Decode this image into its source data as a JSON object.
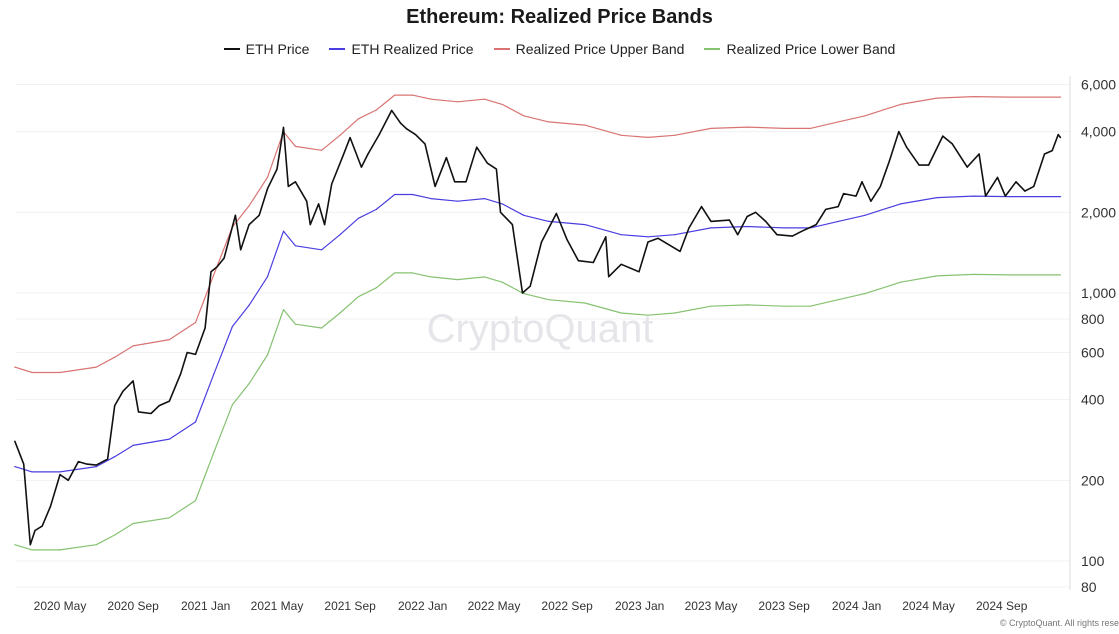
{
  "chart_data": {
    "type": "line",
    "title": "Ethereum: Realized Price Bands",
    "xlabel": "",
    "ylabel": "",
    "y_scale": "log",
    "ylim": [
      80,
      6500
    ],
    "xlim": [
      "2020-02-15",
      "2024-12-10"
    ],
    "grid": true,
    "legend_position": "top",
    "y_ticks": [
      {
        "value": 6000,
        "label": "6,000"
      },
      {
        "value": 4000,
        "label": "4,000"
      },
      {
        "value": 2000,
        "label": "2,000"
      },
      {
        "value": 1000,
        "label": "1,000"
      },
      {
        "value": 800,
        "label": "800"
      },
      {
        "value": 600,
        "label": "600"
      },
      {
        "value": 400,
        "label": "400"
      },
      {
        "value": 200,
        "label": "200"
      },
      {
        "value": 100,
        "label": "100"
      },
      {
        "value": 80,
        "label": "80"
      }
    ],
    "x_ticks": [
      {
        "value": "2020-05-01",
        "label": "2020 May"
      },
      {
        "value": "2020-09-01",
        "label": "2020 Sep"
      },
      {
        "value": "2021-01-01",
        "label": "2021 Jan"
      },
      {
        "value": "2021-05-01",
        "label": "2021 May"
      },
      {
        "value": "2021-09-01",
        "label": "2021 Sep"
      },
      {
        "value": "2022-01-01",
        "label": "2022 Jan"
      },
      {
        "value": "2022-05-01",
        "label": "2022 May"
      },
      {
        "value": "2022-09-01",
        "label": "2022 Sep"
      },
      {
        "value": "2023-01-01",
        "label": "2023 Jan"
      },
      {
        "value": "2023-05-01",
        "label": "2023 May"
      },
      {
        "value": "2023-09-01",
        "label": "2023 Sep"
      },
      {
        "value": "2024-01-01",
        "label": "2024 Jan"
      },
      {
        "value": "2024-05-01",
        "label": "2024 May"
      },
      {
        "value": "2024-09-01",
        "label": "2024 Sep"
      }
    ],
    "series": [
      {
        "name": "ETH Price",
        "color": "#111111",
        "x": [
          "2020-02-15",
          "2020-03-01",
          "2020-03-12",
          "2020-03-20",
          "2020-04-01",
          "2020-04-15",
          "2020-05-01",
          "2020-05-15",
          "2020-06-01",
          "2020-06-15",
          "2020-07-01",
          "2020-07-20",
          "2020-08-01",
          "2020-08-15",
          "2020-09-01",
          "2020-09-10",
          "2020-10-01",
          "2020-10-15",
          "2020-11-01",
          "2020-11-20",
          "2020-12-01",
          "2020-12-15",
          "2020-12-31",
          "2021-01-10",
          "2021-01-20",
          "2021-02-01",
          "2021-02-20",
          "2021-03-01",
          "2021-03-15",
          "2021-04-01",
          "2021-04-15",
          "2021-05-01",
          "2021-05-12",
          "2021-05-20",
          "2021-06-01",
          "2021-06-20",
          "2021-06-26",
          "2021-07-10",
          "2021-07-20",
          "2021-08-01",
          "2021-08-20",
          "2021-09-01",
          "2021-09-20",
          "2021-10-01",
          "2021-10-20",
          "2021-11-10",
          "2021-11-25",
          "2021-12-05",
          "2021-12-20",
          "2022-01-05",
          "2022-01-22",
          "2022-02-10",
          "2022-02-24",
          "2022-03-15",
          "2022-04-02",
          "2022-04-20",
          "2022-05-05",
          "2022-05-12",
          "2022-06-01",
          "2022-06-18",
          "2022-07-01",
          "2022-07-20",
          "2022-08-14",
          "2022-09-01",
          "2022-09-20",
          "2022-10-15",
          "2022-11-05",
          "2022-11-10",
          "2022-12-01",
          "2022-12-31",
          "2023-01-15",
          "2023-02-01",
          "2023-03-10",
          "2023-03-25",
          "2023-04-15",
          "2023-05-01",
          "2023-06-01",
          "2023-06-15",
          "2023-07-01",
          "2023-07-15",
          "2023-08-01",
          "2023-08-20",
          "2023-09-15",
          "2023-10-01",
          "2023-10-25",
          "2023-11-10",
          "2023-12-01",
          "2023-12-10",
          "2023-12-31",
          "2024-01-10",
          "2024-01-25",
          "2024-02-10",
          "2024-02-25",
          "2024-03-12",
          "2024-03-25",
          "2024-04-15",
          "2024-05-01",
          "2024-05-25",
          "2024-06-10",
          "2024-07-05",
          "2024-07-25",
          "2024-08-05",
          "2024-08-25",
          "2024-09-07",
          "2024-09-25",
          "2024-10-10",
          "2024-10-25",
          "2024-11-12",
          "2024-11-25",
          "2024-12-05",
          "2024-12-09"
        ],
        "y": [
          280,
          230,
          115,
          130,
          135,
          160,
          210,
          200,
          235,
          230,
          228,
          240,
          380,
          430,
          470,
          360,
          355,
          380,
          395,
          500,
          600,
          590,
          740,
          1200,
          1250,
          1350,
          1950,
          1450,
          1800,
          1950,
          2450,
          2900,
          4150,
          2500,
          2600,
          2200,
          1800,
          2150,
          1800,
          2550,
          3250,
          3800,
          2950,
          3300,
          3900,
          4800,
          4300,
          4100,
          3900,
          3600,
          2500,
          3200,
          2600,
          2600,
          3500,
          3050,
          2900,
          2000,
          1800,
          1000,
          1060,
          1550,
          1980,
          1580,
          1320,
          1300,
          1620,
          1150,
          1280,
          1200,
          1550,
          1600,
          1430,
          1750,
          2100,
          1850,
          1870,
          1650,
          1930,
          2000,
          1850,
          1650,
          1630,
          1700,
          1800,
          2050,
          2100,
          2350,
          2300,
          2600,
          2200,
          2500,
          3100,
          4000,
          3500,
          3000,
          3000,
          3850,
          3600,
          2950,
          3300,
          2300,
          2700,
          2300,
          2600,
          2400,
          2500,
          3300,
          3400,
          3900,
          3800
        ]
      },
      {
        "name": "ETH Realized Price",
        "color": "#4b3ee0",
        "x": [
          "2020-02-15",
          "2020-03-15",
          "2020-05-01",
          "2020-07-01",
          "2020-08-01",
          "2020-09-01",
          "2020-11-01",
          "2020-12-15",
          "2021-01-15",
          "2021-02-15",
          "2021-03-15",
          "2021-04-15",
          "2021-05-12",
          "2021-06-01",
          "2021-07-15",
          "2021-08-15",
          "2021-09-15",
          "2021-10-15",
          "2021-11-15",
          "2021-12-15",
          "2022-01-15",
          "2022-03-01",
          "2022-04-15",
          "2022-05-15",
          "2022-06-20",
          "2022-08-01",
          "2022-10-01",
          "2022-12-01",
          "2023-01-15",
          "2023-03-01",
          "2023-05-01",
          "2023-07-01",
          "2023-09-01",
          "2023-10-15",
          "2023-12-01",
          "2024-01-15",
          "2024-03-15",
          "2024-05-15",
          "2024-07-15",
          "2024-09-15",
          "2024-12-09"
        ],
        "y": [
          225,
          215,
          215,
          225,
          245,
          270,
          285,
          330,
          500,
          750,
          900,
          1150,
          1700,
          1500,
          1450,
          1650,
          1900,
          2050,
          2330,
          2330,
          2250,
          2200,
          2250,
          2150,
          1950,
          1850,
          1800,
          1650,
          1620,
          1650,
          1750,
          1770,
          1750,
          1750,
          1850,
          1950,
          2150,
          2270,
          2300,
          2290,
          2290
        ]
      },
      {
        "name": "Realized Price Upper Band",
        "color": "#d97473",
        "x": [
          "2020-02-15",
          "2020-03-15",
          "2020-05-01",
          "2020-07-01",
          "2020-08-01",
          "2020-09-01",
          "2020-11-01",
          "2020-12-15",
          "2021-01-15",
          "2021-02-15",
          "2021-03-15",
          "2021-04-15",
          "2021-05-12",
          "2021-06-01",
          "2021-07-15",
          "2021-08-15",
          "2021-09-15",
          "2021-10-15",
          "2021-11-15",
          "2021-12-15",
          "2022-01-15",
          "2022-03-01",
          "2022-04-15",
          "2022-05-15",
          "2022-06-20",
          "2022-08-01",
          "2022-10-01",
          "2022-12-01",
          "2023-01-15",
          "2023-03-01",
          "2023-05-01",
          "2023-07-01",
          "2023-09-01",
          "2023-10-15",
          "2023-12-01",
          "2024-01-15",
          "2024-03-15",
          "2024-05-15",
          "2024-07-15",
          "2024-09-15",
          "2024-12-09"
        ],
        "y": [
          529,
          505,
          505,
          529,
          576,
          635,
          670,
          776,
          1175,
          1763,
          2115,
          2703,
          3995,
          3525,
          3408,
          3878,
          4465,
          4818,
          5476,
          5476,
          5288,
          5170,
          5288,
          5053,
          4583,
          4348,
          4230,
          3878,
          3807,
          3878,
          4113,
          4160,
          4113,
          4113,
          4348,
          4583,
          5053,
          5335,
          5405,
          5382,
          5382
        ]
      },
      {
        "name": "Realized Price Lower Band",
        "color": "#86c271",
        "x": [
          "2020-02-15",
          "2020-03-15",
          "2020-05-01",
          "2020-07-01",
          "2020-08-01",
          "2020-09-01",
          "2020-11-01",
          "2020-12-15",
          "2021-01-15",
          "2021-02-15",
          "2021-03-15",
          "2021-04-15",
          "2021-05-12",
          "2021-06-01",
          "2021-07-15",
          "2021-08-15",
          "2021-09-15",
          "2021-10-15",
          "2021-11-15",
          "2021-12-15",
          "2022-01-15",
          "2022-03-01",
          "2022-04-15",
          "2022-05-15",
          "2022-06-20",
          "2022-08-01",
          "2022-10-01",
          "2022-12-01",
          "2023-01-15",
          "2023-03-01",
          "2023-05-01",
          "2023-07-01",
          "2023-09-01",
          "2023-10-15",
          "2023-12-01",
          "2024-01-15",
          "2024-03-15",
          "2024-05-15",
          "2024-07-15",
          "2024-09-15",
          "2024-12-09"
        ],
        "y": [
          115,
          110,
          110,
          115,
          125,
          138,
          145,
          168,
          255,
          383,
          459,
          587,
          867,
          765,
          740,
          842,
          969,
          1046,
          1188,
          1188,
          1148,
          1122,
          1148,
          1097,
          995,
          944,
          918,
          842,
          826,
          842,
          893,
          903,
          893,
          893,
          944,
          995,
          1097,
          1158,
          1173,
          1168,
          1168
        ]
      }
    ]
  },
  "watermark": "CryptoQuant",
  "footer": "© CryptoQuant. All rights rese"
}
